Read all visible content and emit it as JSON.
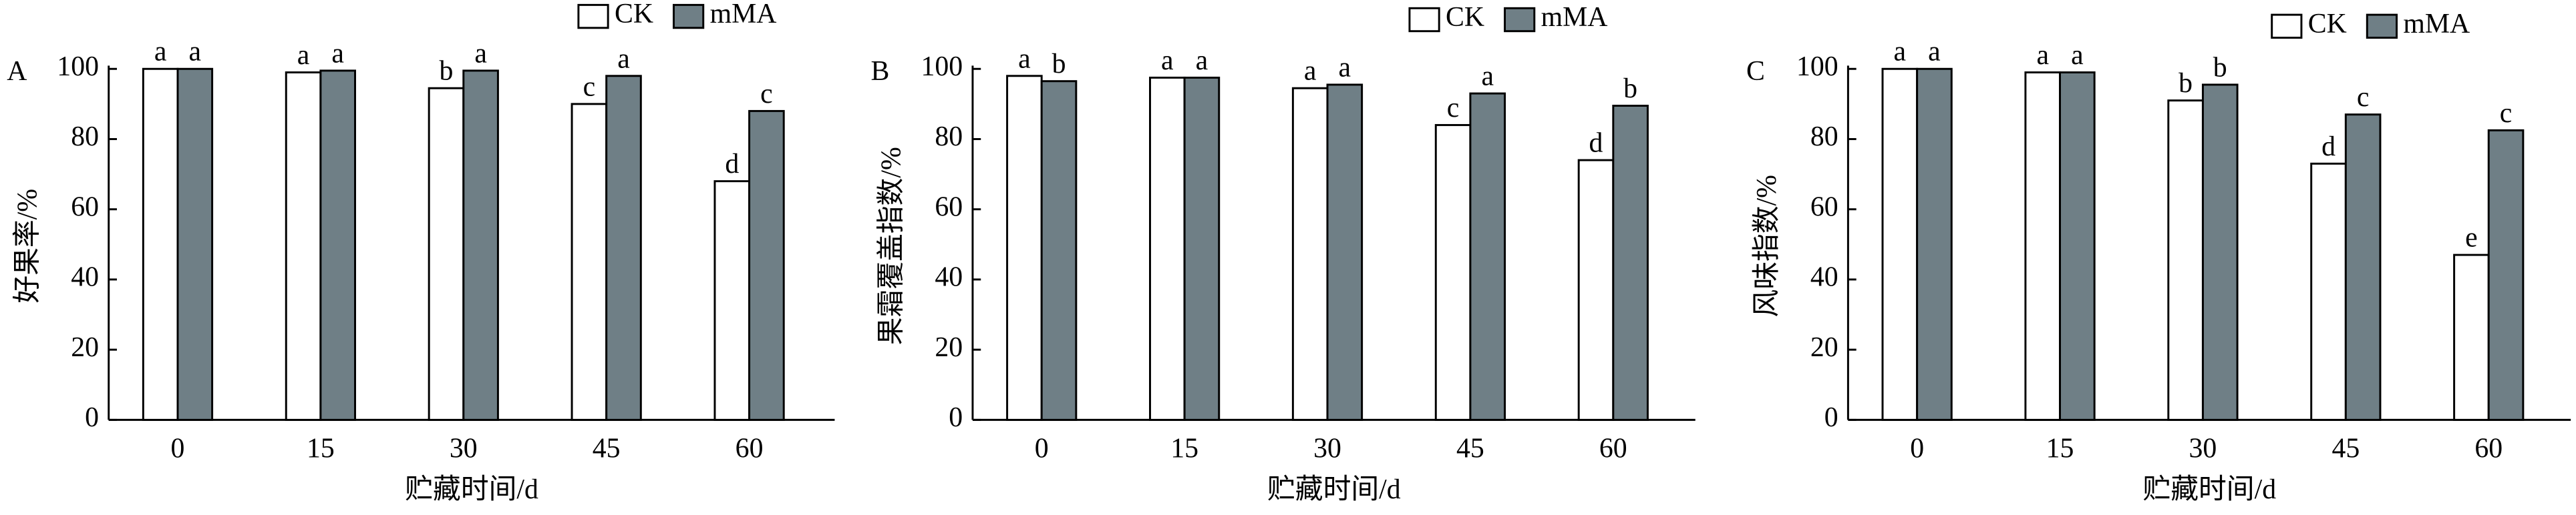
{
  "chart_data": [
    {
      "type": "bar",
      "panel_label": "A",
      "ylabel": "好果率/%",
      "xlabel": "贮藏时间/d",
      "categories": [
        "0",
        "15",
        "30",
        "45",
        "60"
      ],
      "series": [
        {
          "name": "CK",
          "color": "#ffffff",
          "values": [
            100,
            99,
            94.5,
            90,
            68
          ],
          "labels": [
            "a",
            "a",
            "b",
            "c",
            "d"
          ]
        },
        {
          "name": "mMA",
          "color": "#6f7f86",
          "values": [
            100,
            99.5,
            99.5,
            98,
            88
          ],
          "labels": [
            "a",
            "a",
            "a",
            "a",
            "c"
          ]
        }
      ],
      "ylim": [
        0,
        100
      ],
      "yticks": [
        0,
        20,
        40,
        60,
        80,
        100
      ],
      "legend": "upper right"
    },
    {
      "type": "bar",
      "panel_label": "B",
      "ylabel": "果霜覆盖指数/%",
      "xlabel": "贮藏时间/d",
      "categories": [
        "0",
        "15",
        "30",
        "45",
        "60"
      ],
      "series": [
        {
          "name": "CK",
          "color": "#ffffff",
          "values": [
            98,
            97.5,
            94.5,
            84,
            74
          ],
          "labels": [
            "a",
            "a",
            "a",
            "c",
            "d"
          ]
        },
        {
          "name": "mMA",
          "color": "#6f7f86",
          "values": [
            96.5,
            97.5,
            95.5,
            93,
            89.5
          ],
          "labels": [
            "b",
            "a",
            "a",
            "a",
            "b"
          ]
        }
      ],
      "ylim": [
        0,
        100
      ],
      "yticks": [
        0,
        20,
        40,
        60,
        80,
        100
      ],
      "legend": "upper right"
    },
    {
      "type": "bar",
      "panel_label": "C",
      "ylabel": "风味指数/%",
      "xlabel": "贮藏时间/d",
      "categories": [
        "0",
        "15",
        "30",
        "45",
        "60"
      ],
      "series": [
        {
          "name": "CK",
          "color": "#ffffff",
          "values": [
            100,
            99,
            91,
            73,
            47
          ],
          "labels": [
            "a",
            "a",
            "b",
            "d",
            "e"
          ]
        },
        {
          "name": "mMA",
          "color": "#6f7f86",
          "values": [
            100,
            99,
            95.5,
            87,
            82.5
          ],
          "labels": [
            "a",
            "a",
            "b",
            "c",
            "c"
          ]
        }
      ],
      "ylim": [
        0,
        100
      ],
      "yticks": [
        0,
        20,
        40,
        60,
        80,
        100
      ],
      "legend": "upper right"
    }
  ]
}
